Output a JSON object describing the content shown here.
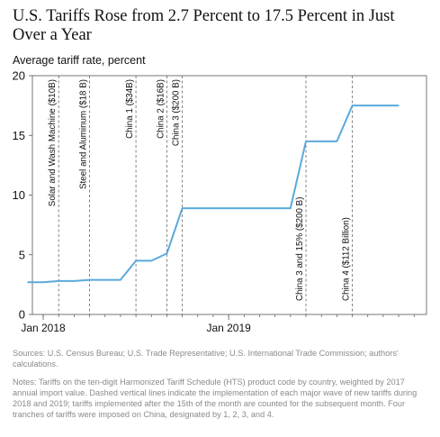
{
  "title": "U.S. Tariffs Rose from 2.7 Percent to 17.5 Percent in Just Over a Year",
  "chart_data": {
    "type": "line",
    "ylabel": "Average tariff rate, percent",
    "ylim": [
      0,
      20
    ],
    "yticks": [
      0,
      5,
      10,
      15,
      20
    ],
    "x_ticks": [
      {
        "label": "Jan 2018",
        "month_index": 0
      },
      {
        "label": "Jan 2019",
        "month_index": 12
      }
    ],
    "x_range_months": [
      -0.7,
      24.8
    ],
    "grid": false,
    "series": [
      {
        "color": "#5aa9dc",
        "points": [
          {
            "month": "2017-12",
            "value": 2.7
          },
          {
            "month": "2018-01",
            "value": 2.7
          },
          {
            "month": "2018-02",
            "value": 2.8
          },
          {
            "month": "2018-03",
            "value": 2.8
          },
          {
            "month": "2018-04",
            "value": 2.9
          },
          {
            "month": "2018-05",
            "value": 2.9
          },
          {
            "month": "2018-06",
            "value": 2.9
          },
          {
            "month": "2018-07",
            "value": 4.5
          },
          {
            "month": "2018-08",
            "value": 4.5
          },
          {
            "month": "2018-09",
            "value": 5.1
          },
          {
            "month": "2018-10",
            "value": 8.9
          },
          {
            "month": "2018-11",
            "value": 8.9
          },
          {
            "month": "2018-12",
            "value": 8.9
          },
          {
            "month": "2019-01",
            "value": 8.9
          },
          {
            "month": "2019-02",
            "value": 8.9
          },
          {
            "month": "2019-03",
            "value": 8.9
          },
          {
            "month": "2019-04",
            "value": 8.9
          },
          {
            "month": "2019-05",
            "value": 8.9
          },
          {
            "month": "2019-06",
            "value": 14.5
          },
          {
            "month": "2019-07",
            "value": 14.5
          },
          {
            "month": "2019-08",
            "value": 14.5
          },
          {
            "month": "2019-09",
            "value": 17.5
          },
          {
            "month": "2019-10",
            "value": 17.5
          },
          {
            "month": "2019-11",
            "value": 17.5
          },
          {
            "month": "2019-12",
            "value": 17.5
          }
        ]
      }
    ],
    "annotations": [
      {
        "label": "Solar and Wash Machine ($10B)",
        "month_index": 1,
        "placement": "top"
      },
      {
        "label": "Steel and Aluminum ($18 B)",
        "month_index": 3,
        "placement": "top"
      },
      {
        "label": "China 1 ($34B)",
        "month_index": 6,
        "placement": "top"
      },
      {
        "label": "China 2 ($16B)",
        "month_index": 8,
        "placement": "top"
      },
      {
        "label": "China 3 ($200 B)",
        "month_index": 9,
        "placement": "top"
      },
      {
        "label": "China 3 and 15% ($200 B)",
        "month_index": 17,
        "placement": "bottom"
      },
      {
        "label": "China 4 ($112 Billion)",
        "month_index": 20,
        "placement": "bottom"
      }
    ]
  },
  "sources": "Sources: U.S. Census Bureau; U.S. Trade Representative; U.S. International Trade Commission; authors' calculations.",
  "notes": "Notes: Tariffs on the ten-digit Harmonized Tariff Schedule (HTS) product code by country, weighted by 2017 annual import value. Dashed vertical lines indicate the implementation of each major wave of new tariffs during 2018 and 2019; tariffs implemented after the 15th of the month are counted for the subsequent month. Four tranches of tariffs were imposed on China, designated by 1, 2, 3, and 4."
}
